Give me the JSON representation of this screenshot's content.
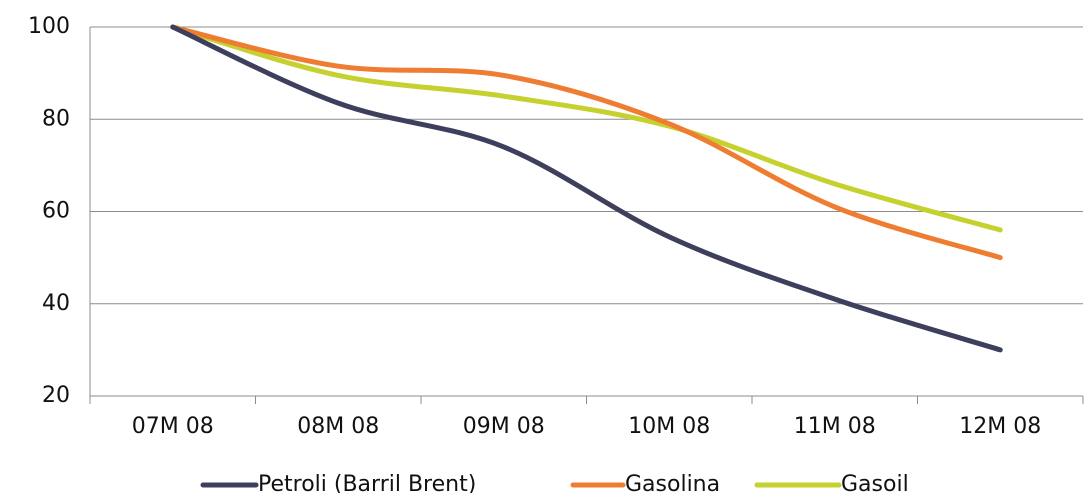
{
  "chart_data": {
    "type": "line",
    "title": "",
    "xlabel": "",
    "ylabel": "",
    "categories": [
      "07M 08",
      "08M 08",
      "09M 08",
      "10M 08",
      "11M 08",
      "12M 08"
    ],
    "ylim": [
      20,
      100
    ],
    "yticks": [
      "20",
      "40",
      "60",
      "80",
      "100"
    ],
    "grid": "horizontal",
    "legend_position": "bottom",
    "series": [
      {
        "name": "Petroli (Barril Brent)",
        "color": "#3d3f5c",
        "values": [
          100,
          83.5,
          74,
          54.5,
          41,
          30
        ]
      },
      {
        "name": "Gasolina",
        "color": "#ef7d31",
        "values": [
          100,
          91.5,
          89.5,
          79,
          61,
          50
        ]
      },
      {
        "name": "Gasoil",
        "color": "#c5d12f",
        "values": [
          100,
          89.5,
          85,
          78.5,
          66,
          56
        ]
      }
    ]
  }
}
